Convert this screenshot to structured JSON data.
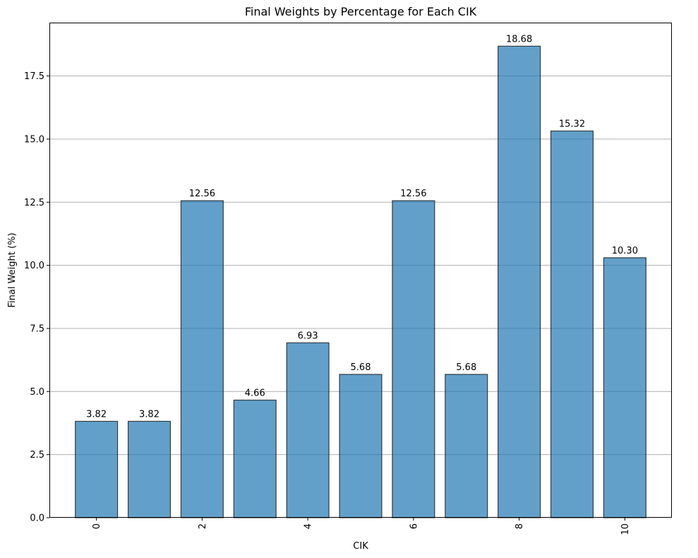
{
  "chart_data": {
    "type": "bar",
    "title": "Final Weights by Percentage for Each CIK",
    "xlabel": "CIK",
    "ylabel": "Final Weight (%)",
    "categories": [
      0,
      1,
      2,
      3,
      4,
      5,
      6,
      7,
      8,
      9,
      10
    ],
    "values": [
      3.82,
      3.82,
      12.56,
      4.66,
      6.93,
      5.68,
      12.56,
      5.68,
      18.68,
      15.32,
      10.3
    ],
    "value_labels": [
      "3.82",
      "3.82",
      "12.56",
      "4.66",
      "6.93",
      "5.68",
      "12.56",
      "5.68",
      "18.68",
      "15.32",
      "10.30"
    ],
    "x_ticks": [
      "0",
      "2",
      "4",
      "6",
      "8",
      "10"
    ],
    "y_ticks": [
      "0.0",
      "2.5",
      "5.0",
      "7.5",
      "10.0",
      "12.5",
      "15.0",
      "17.5"
    ],
    "ylim": [
      0,
      19.614
    ],
    "grid": "y-axis",
    "bar_color": "#1f77b4",
    "bar_edge_color": "#000000",
    "grid_color": "#b0b0b0"
  }
}
